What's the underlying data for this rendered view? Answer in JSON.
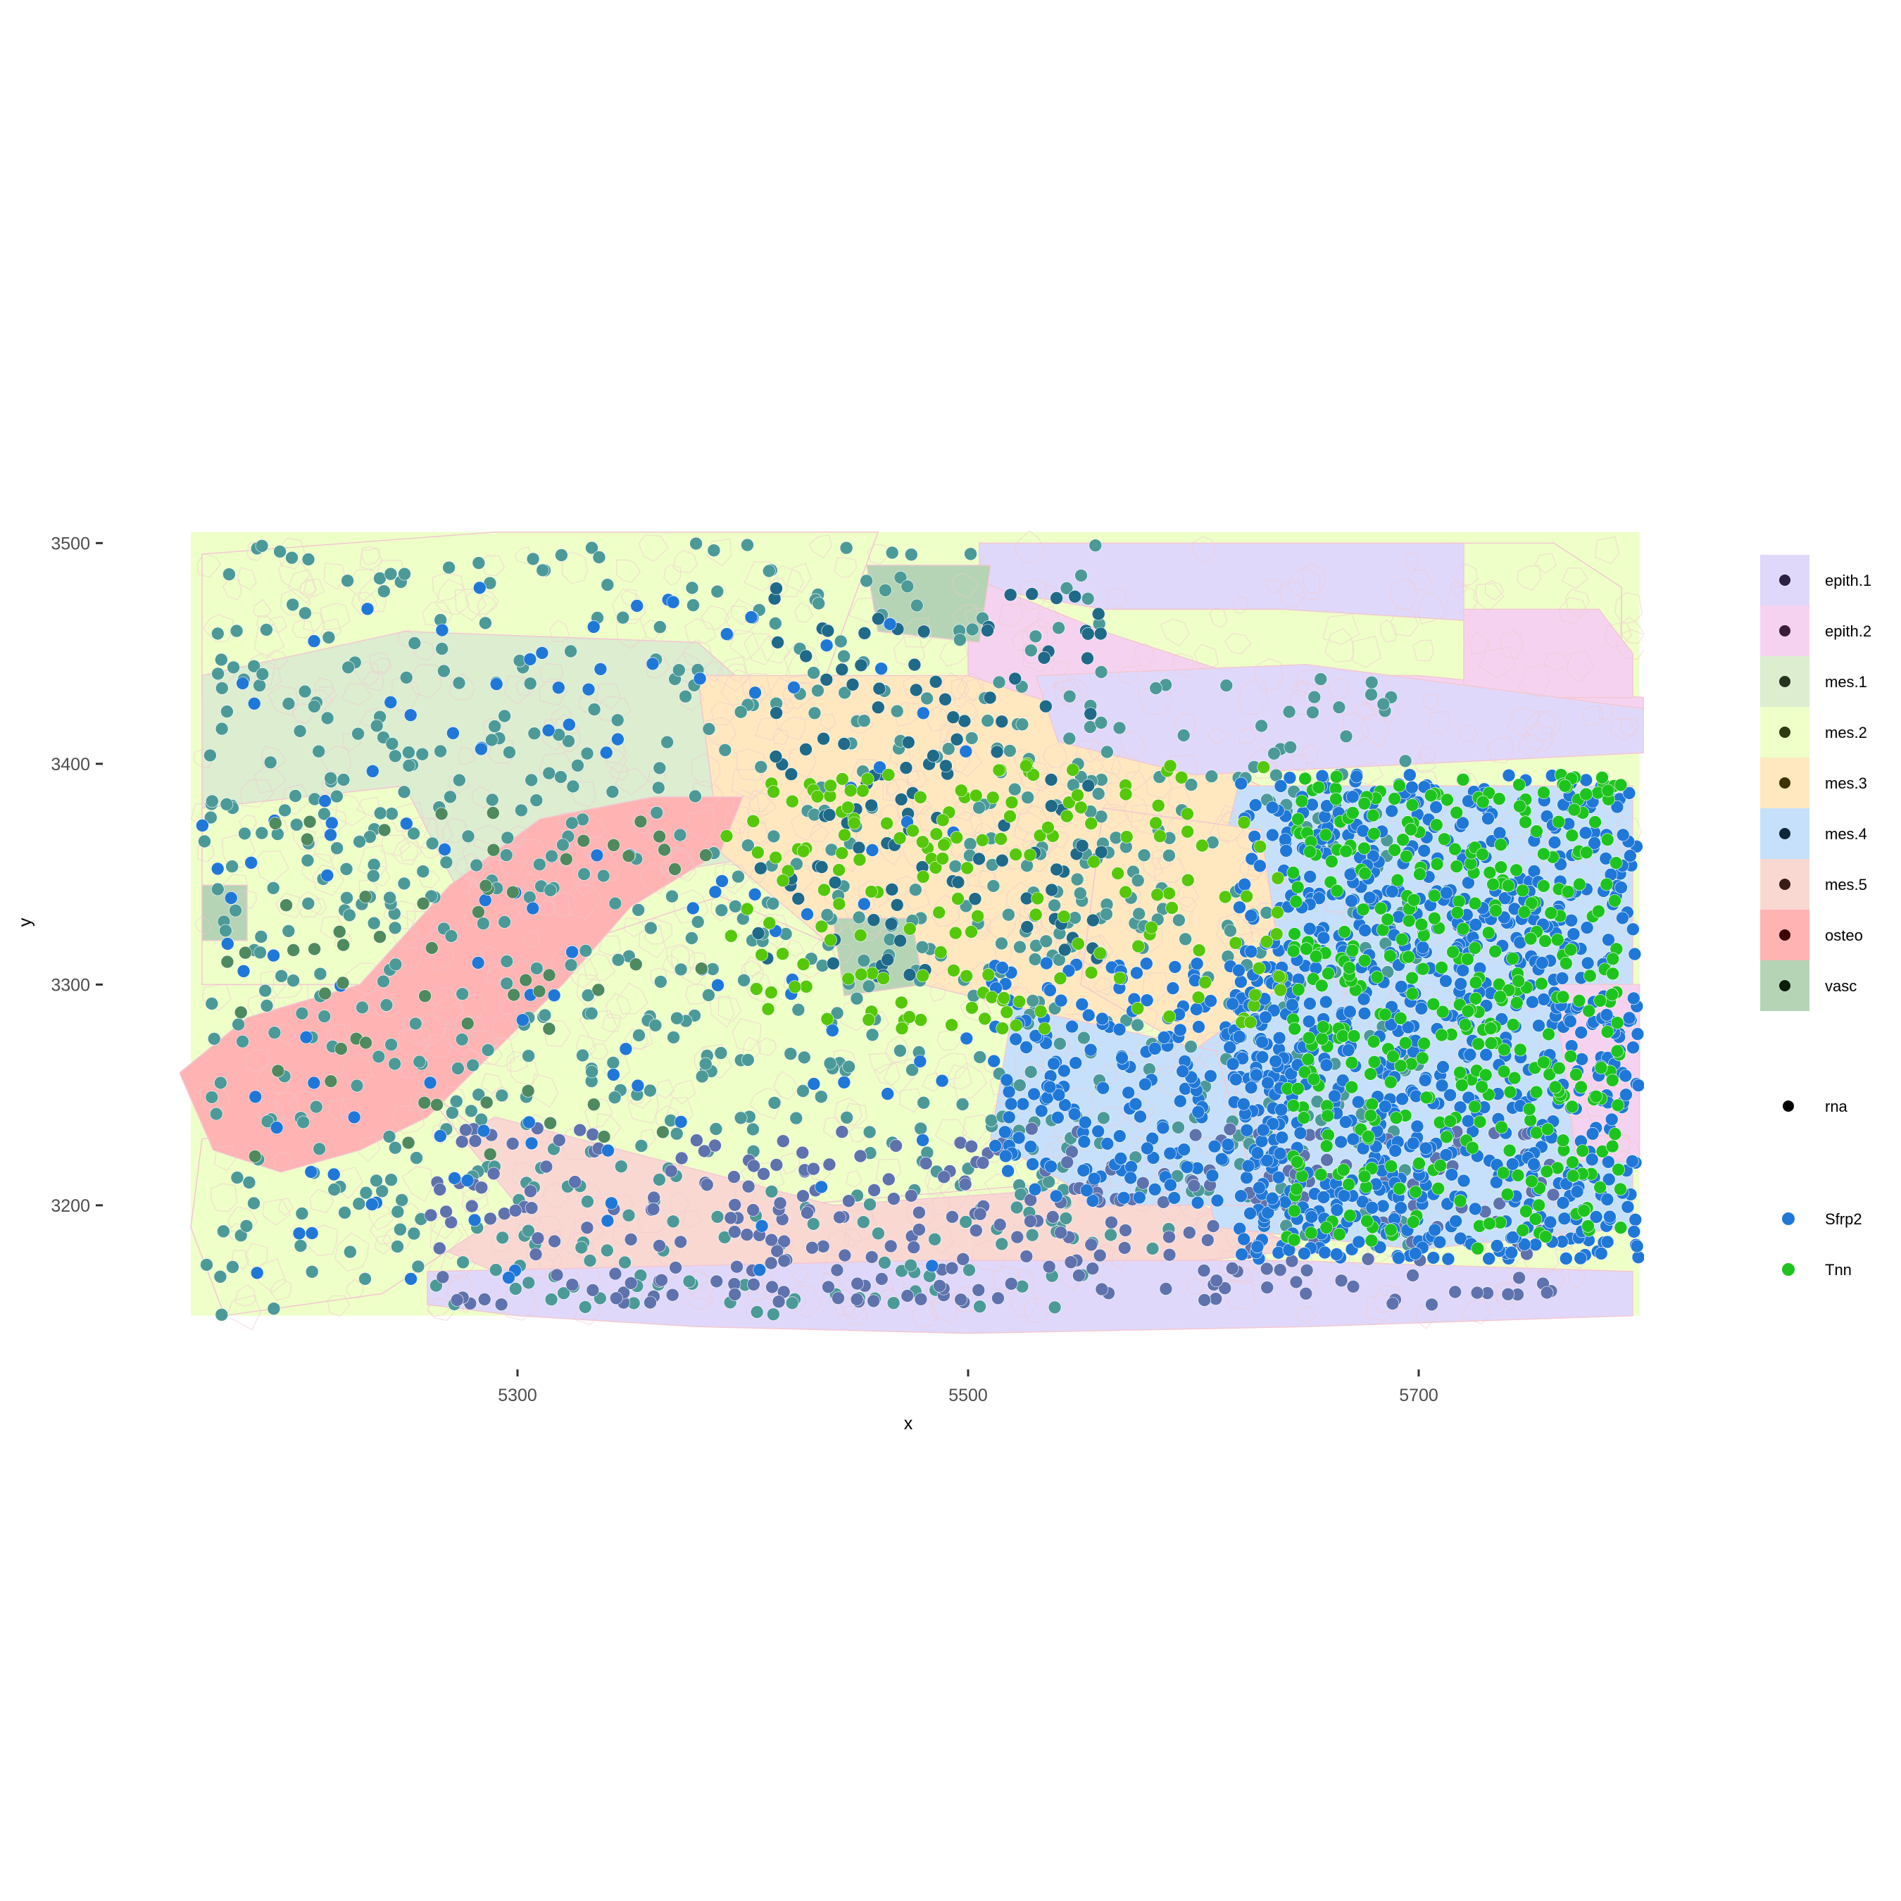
{
  "chart_data": {
    "type": "scatter",
    "title": "",
    "xlabel": "x",
    "ylabel": "y",
    "xlim": [
      5150,
      5800
    ],
    "ylim": [
      3140,
      3510
    ],
    "x_ticks": [
      {
        "value": 5300,
        "label": "5300"
      },
      {
        "value": 5500,
        "label": "5500"
      },
      {
        "value": 5700,
        "label": "5700"
      }
    ],
    "y_ticks": [
      {
        "value": 3200,
        "label": "3200"
      },
      {
        "value": 3300,
        "label": "3300"
      },
      {
        "value": 3400,
        "label": "3400"
      },
      {
        "value": 3500,
        "label": "3500"
      }
    ],
    "grid": false,
    "legend_position": "right",
    "cell_type_legend": [
      {
        "label": "epith.1",
        "fill": "#e0d8fa",
        "dot": "#2b2140"
      },
      {
        "label": "epith.2",
        "fill": "#f5d3f0",
        "dot": "#3a1e38"
      },
      {
        "label": "mes.1",
        "fill": "#dcedd0",
        "dot": "#26331d"
      },
      {
        "label": "mes.2",
        "fill": "#eeffc8",
        "dot": "#2e3a10"
      },
      {
        "label": "mes.3",
        "fill": "#ffe8bf",
        "dot": "#3f3108"
      },
      {
        "label": "mes.4",
        "fill": "#c6e0fb",
        "dot": "#10263b"
      },
      {
        "label": "mes.5",
        "fill": "#fad8d2",
        "dot": "#3a1c17"
      },
      {
        "label": "osteo",
        "fill": "#ffb3b3",
        "dot": "#3c0000"
      },
      {
        "label": "vasc",
        "fill": "#b5d4b5",
        "dot": "#0a1e0a"
      }
    ],
    "rna_legend_title": "rna",
    "rna_legend": [
      {
        "label": "Sfrp2",
        "color": "#1f78d8"
      },
      {
        "label": "Tnn",
        "color": "#1ec41e"
      }
    ],
    "regions": [
      {
        "cell_type": "mes.2",
        "polygon": [
          [
            5160,
            3495
          ],
          [
            5290,
            3505
          ],
          [
            5400,
            3505
          ],
          [
            5460,
            3505
          ],
          [
            5430,
            3420
          ],
          [
            5300,
            3420
          ],
          [
            5200,
            3420
          ],
          [
            5160,
            3430
          ]
        ]
      },
      {
        "cell_type": "mes.1",
        "polygon": [
          [
            5160,
            3440
          ],
          [
            5250,
            3460
          ],
          [
            5380,
            3455
          ],
          [
            5430,
            3410
          ],
          [
            5420,
            3360
          ],
          [
            5300,
            3340
          ],
          [
            5200,
            3350
          ],
          [
            5160,
            3360
          ]
        ]
      },
      {
        "cell_type": "mes.2",
        "polygon": [
          [
            5160,
            3380
          ],
          [
            5250,
            3390
          ],
          [
            5280,
            3330
          ],
          [
            5230,
            3300
          ],
          [
            5160,
            3300
          ]
        ]
      },
      {
        "cell_type": "mes.3",
        "polygon": [
          [
            5380,
            3440
          ],
          [
            5520,
            3440
          ],
          [
            5630,
            3390
          ],
          [
            5620,
            3300
          ],
          [
            5560,
            3280
          ],
          [
            5460,
            3300
          ],
          [
            5390,
            3360
          ]
        ]
      },
      {
        "cell_type": "mes.2",
        "polygon": [
          [
            5270,
            3300
          ],
          [
            5390,
            3340
          ],
          [
            5480,
            3300
          ],
          [
            5560,
            3280
          ],
          [
            5540,
            3210
          ],
          [
            5420,
            3200
          ],
          [
            5300,
            3220
          ],
          [
            5250,
            3260
          ]
        ]
      },
      {
        "cell_type": "mes.5",
        "polygon": [
          [
            5290,
            3240
          ],
          [
            5440,
            3200
          ],
          [
            5580,
            3210
          ],
          [
            5650,
            3180
          ],
          [
            5560,
            3170
          ],
          [
            5420,
            3165
          ],
          [
            5290,
            3170
          ],
          [
            5220,
            3200
          ]
        ]
      },
      {
        "cell_type": "mes.2",
        "polygon": [
          [
            5160,
            3230
          ],
          [
            5260,
            3250
          ],
          [
            5300,
            3200
          ],
          [
            5240,
            3160
          ],
          [
            5170,
            3150
          ],
          [
            5155,
            3190
          ]
        ]
      },
      {
        "cell_type": "mes.4",
        "polygon": [
          [
            5620,
            3390
          ],
          [
            5795,
            3390
          ],
          [
            5795,
            3190
          ],
          [
            5700,
            3180
          ],
          [
            5610,
            3190
          ],
          [
            5590,
            3270
          ]
        ]
      },
      {
        "cell_type": "mes.4",
        "polygon": [
          [
            5520,
            3290
          ],
          [
            5610,
            3270
          ],
          [
            5630,
            3200
          ],
          [
            5560,
            3200
          ],
          [
            5510,
            3230
          ]
        ]
      },
      {
        "cell_type": "mes.3",
        "polygon": [
          [
            5560,
            3380
          ],
          [
            5630,
            3370
          ],
          [
            5640,
            3300
          ],
          [
            5600,
            3270
          ],
          [
            5550,
            3300
          ]
        ]
      },
      {
        "cell_type": "mes.2",
        "polygon": [
          [
            5710,
            3500
          ],
          [
            5760,
            3500
          ],
          [
            5790,
            3480
          ],
          [
            5790,
            3455
          ],
          [
            5740,
            3460
          ],
          [
            5710,
            3475
          ]
        ]
      },
      {
        "cell_type": "epith.1",
        "polygon": [
          [
            5505,
            3500
          ],
          [
            5720,
            3500
          ],
          [
            5720,
            3465
          ],
          [
            5640,
            3470
          ],
          [
            5560,
            3470
          ],
          [
            5505,
            3480
          ]
        ]
      },
      {
        "cell_type": "epith.2",
        "polygon": [
          [
            5500,
            3485
          ],
          [
            5560,
            3460
          ],
          [
            5620,
            3440
          ],
          [
            5700,
            3440
          ],
          [
            5800,
            3430
          ],
          [
            5800,
            3410
          ],
          [
            5700,
            3405
          ],
          [
            5620,
            3405
          ],
          [
            5560,
            3420
          ],
          [
            5500,
            3440
          ]
        ]
      },
      {
        "cell_type": "epith.2",
        "polygon": [
          [
            5720,
            3470
          ],
          [
            5780,
            3470
          ],
          [
            5795,
            3450
          ],
          [
            5795,
            3430
          ],
          [
            5720,
            3430
          ]
        ]
      },
      {
        "cell_type": "epith.1",
        "polygon": [
          [
            5530,
            3440
          ],
          [
            5650,
            3445
          ],
          [
            5800,
            3425
          ],
          [
            5800,
            3405
          ],
          [
            5700,
            3400
          ],
          [
            5600,
            3395
          ],
          [
            5540,
            3410
          ]
        ]
      },
      {
        "cell_type": "epith.1",
        "polygon": [
          [
            5260,
            3170
          ],
          [
            5480,
            3175
          ],
          [
            5640,
            3175
          ],
          [
            5795,
            3170
          ],
          [
            5795,
            3150
          ],
          [
            5650,
            3145
          ],
          [
            5500,
            3142
          ],
          [
            5380,
            3145
          ],
          [
            5300,
            3150
          ],
          [
            5260,
            3155
          ]
        ]
      },
      {
        "cell_type": "epith.2",
        "polygon": [
          [
            5760,
            3300
          ],
          [
            5798,
            3300
          ],
          [
            5798,
            3220
          ],
          [
            5770,
            3220
          ]
        ]
      },
      {
        "cell_type": "osteo",
        "polygon": [
          [
            5150,
            3260
          ],
          [
            5180,
            3285
          ],
          [
            5230,
            3300
          ],
          [
            5270,
            3345
          ],
          [
            5310,
            3375
          ],
          [
            5360,
            3385
          ],
          [
            5400,
            3385
          ],
          [
            5390,
            3360
          ],
          [
            5350,
            3335
          ],
          [
            5320,
            3300
          ],
          [
            5290,
            3270
          ],
          [
            5260,
            3240
          ],
          [
            5230,
            3225
          ],
          [
            5195,
            3215
          ],
          [
            5165,
            3225
          ]
        ]
      },
      {
        "cell_type": "vasc",
        "polygon": [
          [
            5440,
            3330
          ],
          [
            5475,
            3330
          ],
          [
            5480,
            3300
          ],
          [
            5445,
            3295
          ]
        ]
      },
      {
        "cell_type": "vasc",
        "polygon": [
          [
            5455,
            3490
          ],
          [
            5510,
            3490
          ],
          [
            5505,
            3455
          ],
          [
            5460,
            3460
          ]
        ]
      },
      {
        "cell_type": "vasc",
        "polygon": [
          [
            5160,
            3345
          ],
          [
            5180,
            3345
          ],
          [
            5180,
            3320
          ],
          [
            5160,
            3320
          ]
        ]
      }
    ],
    "rna_clusters": [
      {
        "gene": "vasc",
        "color": "#4b9a98",
        "x": [
          5160,
          5560
        ],
        "y": [
          3150,
          3500
        ],
        "n": 650
      },
      {
        "gene": "vasc",
        "color": "#4b9a98",
        "x": [
          5520,
          5700
        ],
        "y": [
          3180,
          3440
        ],
        "n": 230
      },
      {
        "gene": "mes.4",
        "color": "#1f6a88",
        "x": [
          5400,
          5560
        ],
        "y": [
          3300,
          3480
        ],
        "n": 120
      },
      {
        "gene": "mes.5",
        "color": "#5e72ad",
        "x": [
          5260,
          5760
        ],
        "y": [
          3155,
          3235
        ],
        "n": 320
      },
      {
        "gene": "Sfrp2",
        "color": "#1f78d8",
        "x": [
          5620,
          5798
        ],
        "y": [
          3175,
          3395
        ],
        "n": 900
      },
      {
        "gene": "Sfrp2",
        "color": "#1f78d8",
        "x": [
          5510,
          5640
        ],
        "y": [
          3200,
          3310
        ],
        "n": 220
      },
      {
        "gene": "Sfrp2",
        "color": "#1f78d8",
        "x": [
          5160,
          5500
        ],
        "y": [
          3160,
          3480
        ],
        "n": 120
      },
      {
        "gene": "Tnn",
        "color": "#1ec41e",
        "x": [
          5640,
          5790
        ],
        "y": [
          3180,
          3395
        ],
        "n": 420
      },
      {
        "gene": "Tnn",
        "color": "#55c80a",
        "x": [
          5390,
          5640
        ],
        "y": [
          3280,
          3400
        ],
        "n": 180
      },
      {
        "gene": "osteo",
        "color": "#4e8a5e",
        "x": [
          5170,
          5390
        ],
        "y": [
          3220,
          3380
        ],
        "n": 60
      }
    ]
  }
}
